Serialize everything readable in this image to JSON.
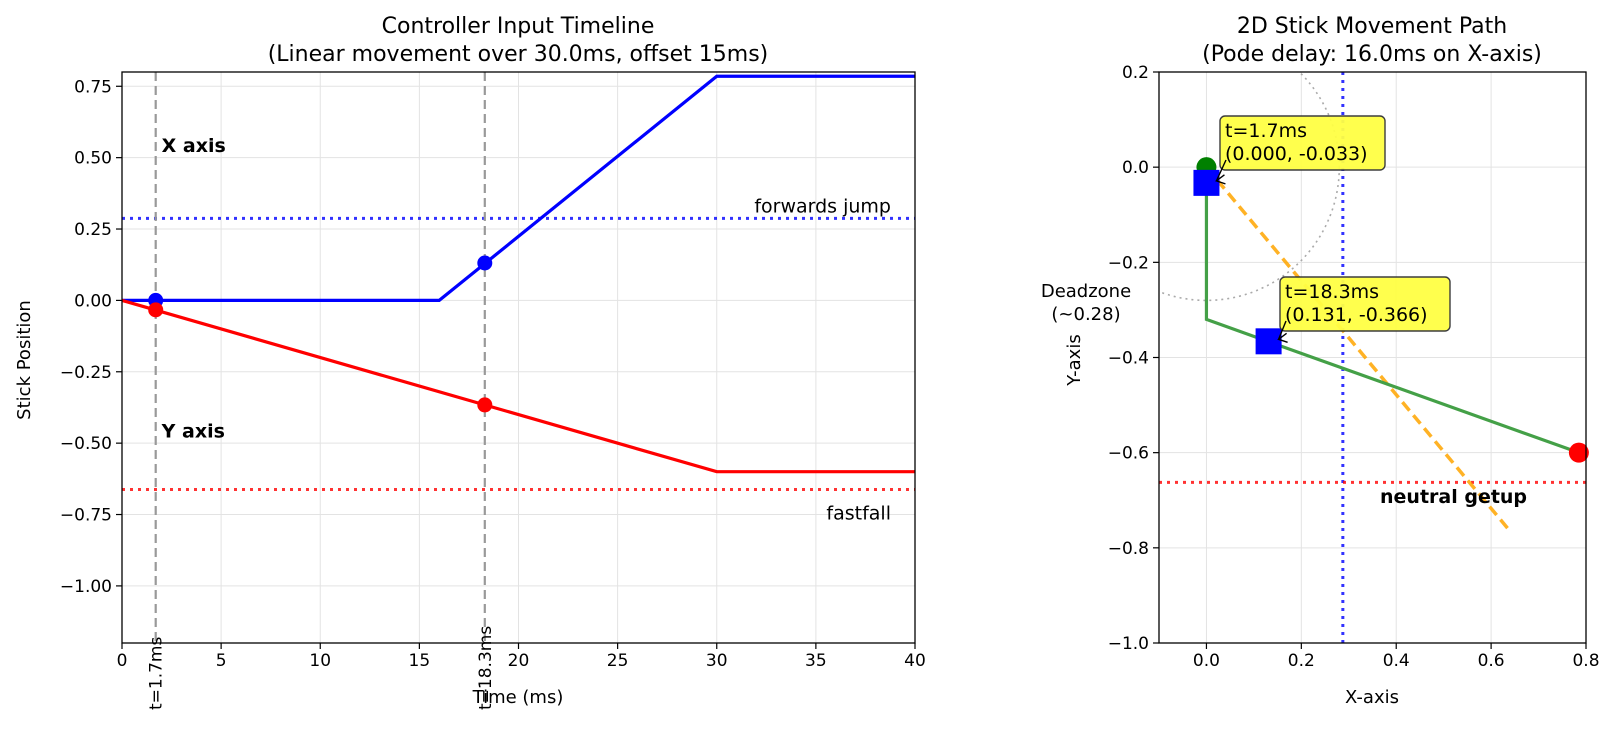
{
  "chart_data": [
    {
      "type": "line",
      "title": "Controller Input Timeline",
      "subtitle": "(Linear movement over 30.0ms, offset 15ms)",
      "xlabel": "Time (ms)",
      "ylabel": "Stick Position",
      "xlim": [
        0,
        40
      ],
      "ylim": [
        -1.2,
        0.8
      ],
      "grid": true,
      "x_ticks": [
        "0",
        "5",
        "10",
        "15",
        "20",
        "25",
        "30",
        "35",
        "40"
      ],
      "y_ticks": [
        "0.75",
        "0.50",
        "0.25",
        "0.00",
        "−0.25",
        "−0.50",
        "−0.75",
        "−1.00"
      ],
      "series": [
        {
          "name": "X axis",
          "color": "#0000ff",
          "x": [
            0,
            16,
            30,
            40
          ],
          "y": [
            0,
            0,
            0.785,
            0.785
          ]
        },
        {
          "name": "Y axis",
          "color": "#ff0000",
          "x": [
            0,
            30,
            40
          ],
          "y": [
            0,
            -0.6,
            -0.6
          ]
        }
      ],
      "markers": [
        {
          "x": 1.7,
          "y": 0.0,
          "color": "#0000ff"
        },
        {
          "x": 1.7,
          "y": -0.033,
          "color": "#ff0000"
        },
        {
          "x": 18.3,
          "y": 0.131,
          "color": "#0000ff"
        },
        {
          "x": 18.3,
          "y": -0.366,
          "color": "#ff0000"
        }
      ],
      "thresholds": [
        {
          "label": "forwards jump",
          "y": 0.2875,
          "color": "#0000ff"
        },
        {
          "label": "fastfall",
          "y": -0.6625,
          "color": "#ff0000"
        }
      ],
      "vlines": [
        {
          "label": "t=1.7ms",
          "x": 1.7
        },
        {
          "label": "t=18.3ms",
          "x": 18.3
        }
      ],
      "series_labels": [
        {
          "text": "X axis",
          "x": 2.0,
          "y": 0.52,
          "color": "#0000ff"
        },
        {
          "text": "Y axis",
          "x": 2.0,
          "y": -0.48,
          "color": "#ff0000"
        }
      ]
    },
    {
      "type": "line",
      "title": "2D Stick Movement Path",
      "subtitle": "(Pode delay: 16.0ms on X-axis)",
      "xlabel": "X-axis",
      "ylabel": "Y-axis",
      "xlim": [
        -0.1,
        0.8
      ],
      "ylim": [
        -1.0,
        0.2
      ],
      "grid": true,
      "x_ticks": [
        "0.0",
        "0.2",
        "0.4",
        "0.6",
        "0.8"
      ],
      "y_ticks": [
        "0.2",
        "0.0",
        "−0.2",
        "−0.4",
        "−0.6",
        "−0.8",
        "−1.0"
      ],
      "path": {
        "color": "#44a047",
        "x": [
          0,
          0,
          0.785
        ],
        "y": [
          0,
          -0.32,
          -0.6
        ]
      },
      "start_point": {
        "x": 0,
        "y": 0,
        "color": "#008000"
      },
      "end_point": {
        "x": 0.785,
        "y": -0.6,
        "color": "#ff0000"
      },
      "sample_points": [
        {
          "x": 0.0,
          "y": -0.033,
          "color": "#0000ff",
          "label": "t=1.7ms\n(0.000, -0.033)"
        },
        {
          "x": 0.131,
          "y": -0.366,
          "color": "#0000ff",
          "label": "t=18.3ms\n(0.131, -0.366)"
        }
      ],
      "deadzone": {
        "radius": 0.28,
        "label": "Deadzone\n(~0.28)"
      },
      "neutral_getup": {
        "label": "neutral getup",
        "color": "#ffa500",
        "x": [
          0,
          0.64
        ],
        "y": [
          0,
          -0.765
        ]
      },
      "thresholds": [
        {
          "axis": "x",
          "value": 0.2875,
          "color": "#0000ff"
        },
        {
          "axis": "y",
          "value": -0.6625,
          "color": "#ff0000"
        }
      ]
    }
  ]
}
